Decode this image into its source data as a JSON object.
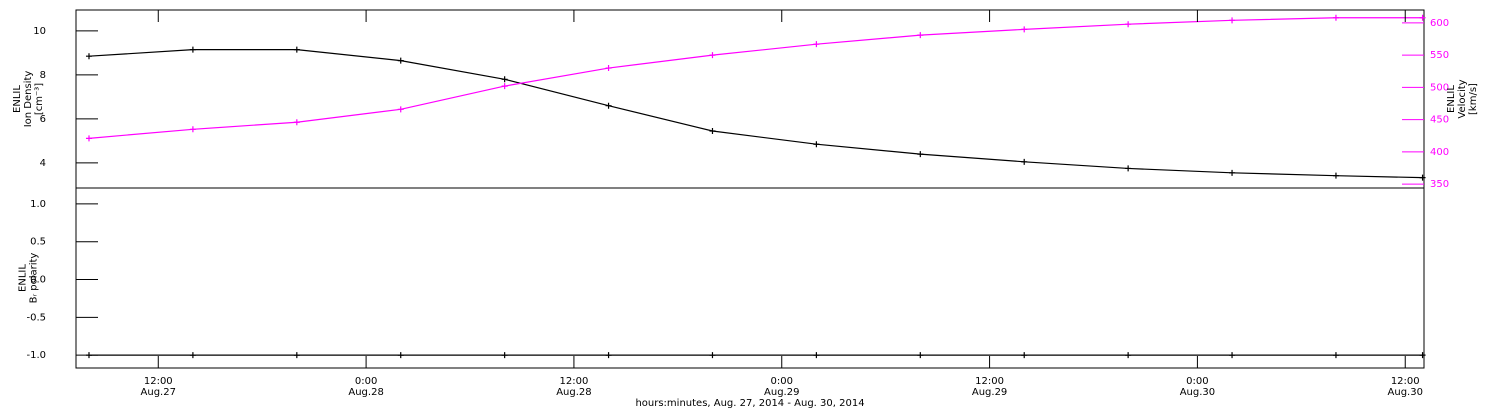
{
  "chart_data": [
    {
      "type": "line",
      "x": [
        "2014-08-27T08:00",
        "2014-08-27T14:00",
        "2014-08-27T20:00",
        "2014-08-28T02:00",
        "2014-08-28T08:00",
        "2014-08-28T14:00",
        "2014-08-28T20:00",
        "2014-08-29T02:00",
        "2014-08-29T08:00",
        "2014-08-29T14:00",
        "2014-08-29T20:00",
        "2014-08-30T02:00",
        "2014-08-30T08:00",
        "2014-08-30T13:00"
      ],
      "xlim": [
        "2014-08-27T07:15",
        "2014-08-30T13:05"
      ],
      "series": [
        {
          "name": "Ion Density",
          "color": "#000000",
          "axis": "y",
          "values": [
            8.85,
            9.15,
            9.15,
            8.65,
            7.8,
            6.6,
            5.45,
            4.85,
            4.4,
            4.05,
            3.75,
            3.55,
            3.42,
            3.33
          ]
        },
        {
          "name": "Velocity",
          "color": "#ff00ff",
          "axis": "y2",
          "values": [
            421,
            435,
            446,
            466,
            502,
            530,
            550,
            567,
            581,
            590,
            598,
            604,
            608,
            608
          ]
        }
      ],
      "ylabel": [
        "ENLIL",
        "Ion Density",
        "[cm⁻³]"
      ],
      "ylim": [
        2.86,
        10.95
      ],
      "yticks": [
        4,
        6,
        8,
        10
      ],
      "y2label": [
        "ENLIL",
        "Velocity",
        "[km/s]"
      ],
      "y2lim": [
        344,
        620
      ],
      "y2ticks": [
        350,
        400,
        450,
        500,
        550,
        600
      ]
    },
    {
      "type": "line",
      "x": [
        "2014-08-27T08:00",
        "2014-08-27T14:00",
        "2014-08-27T20:00",
        "2014-08-28T02:00",
        "2014-08-28T08:00",
        "2014-08-28T14:00",
        "2014-08-28T20:00",
        "2014-08-29T02:00",
        "2014-08-29T08:00",
        "2014-08-29T14:00",
        "2014-08-29T20:00",
        "2014-08-30T02:00",
        "2014-08-30T08:00",
        "2014-08-30T13:00"
      ],
      "xlim": [
        "2014-08-27T07:15",
        "2014-08-30T13:05"
      ],
      "series": [
        {
          "name": "Br polarity",
          "color": "#000000",
          "axis": "y",
          "values": [
            -1,
            -1,
            -1,
            -1,
            -1,
            -1,
            -1,
            -1,
            -1,
            -1,
            -1,
            -1,
            -1,
            -1
          ]
        }
      ],
      "ylabel": [
        "ENLIL",
        "Bᵣ polarity"
      ],
      "ylim": [
        -1.17,
        1.21
      ],
      "yticks": [
        {
          "value": 1,
          "label": "1.0"
        },
        0.5,
        {
          "value": 0,
          "label": "0.0"
        },
        -0.5,
        {
          "value": -1,
          "label": "-1.0"
        }
      ],
      "xticks": [
        {
          "value": "2014-08-27T12:00",
          "label": "12:00",
          "date": "Aug.27"
        },
        {
          "value": "2014-08-28T00:00",
          "label": "0:00",
          "date": "Aug.28"
        },
        {
          "value": "2014-08-28T12:00",
          "label": "12:00",
          "date": "Aug.28"
        },
        {
          "value": "2014-08-29T00:00",
          "label": "0:00",
          "date": "Aug.29"
        },
        {
          "value": "2014-08-29T12:00",
          "label": "12:00",
          "date": "Aug.29"
        },
        {
          "value": "2014-08-30T00:00",
          "label": "0:00",
          "date": "Aug.30"
        },
        {
          "value": "2014-08-30T12:00",
          "label": "12:00",
          "date": "Aug.30"
        }
      ],
      "xlabel": "hours:minutes, Aug. 27, 2014 - Aug. 30, 2014"
    }
  ]
}
